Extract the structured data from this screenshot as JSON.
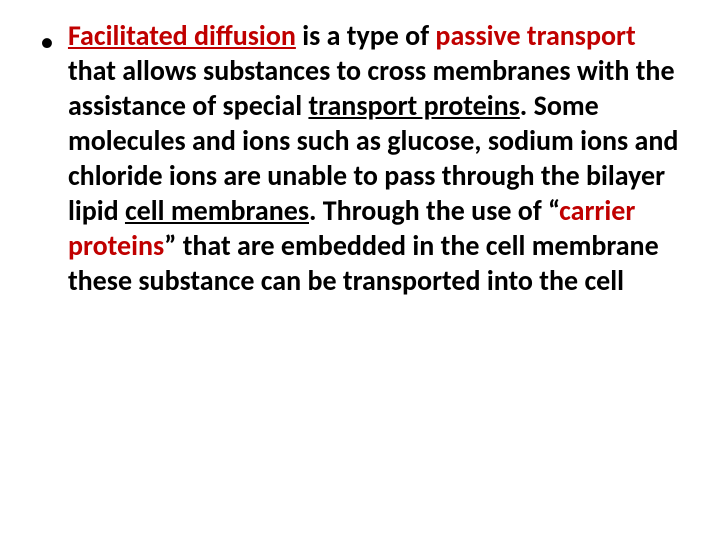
{
  "slide": {
    "bullet_glyph": "•",
    "segments": {
      "s0": "Facilitated diffusion",
      "s1": " is a type of ",
      "s2": "passive transport",
      "s3": " that allows substances to cross membranes with the assistance of special ",
      "s4": "transport proteins",
      "s5": ". Some molecules and ions such as glucose, sodium ions and chloride ions are unable to pass through the bilayer lipid ",
      "s6": "cell membranes",
      "s7": ". Through the use of “",
      "s8": "carrier proteins",
      "s9": "” that are embedded in the cell membrane these substance can be transported into the cell"
    }
  },
  "style": {
    "background_color": "#ffffff",
    "text_color": "#000000",
    "highlight_color": "#c00000",
    "font_size_pt": 28,
    "font_weight": "bold",
    "font_family": "Calibri"
  }
}
